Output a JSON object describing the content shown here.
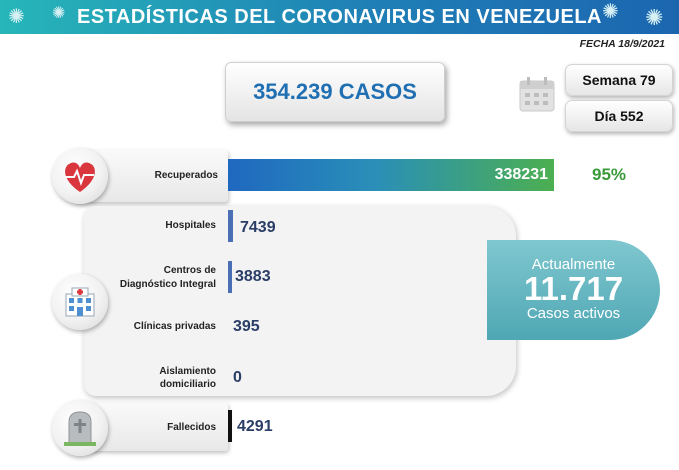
{
  "header": {
    "title": "ESTADÍSTICAS DEL CORONAVIRUS EN VENEZUELA"
  },
  "fecha": "FECHA 18/9/2021",
  "casos": "354.239 CASOS",
  "semana": "Semana 79",
  "dia": "Día 552",
  "recuperados": {
    "label": "Recuperados",
    "value": "338231",
    "pct": "95%"
  },
  "hospitales": {
    "label": "Hospitales",
    "value": "7439"
  },
  "cdi": {
    "label_line1": "Centros de",
    "label_line2": "Diagnóstico Integral",
    "value": "3883"
  },
  "clinicas": {
    "label": "Clínicas privadas",
    "value": "395"
  },
  "aislamiento": {
    "label_line1": "Aislamiento",
    "label_line2": "domiciliario",
    "value": "0"
  },
  "fallecidos": {
    "label": "Fallecidos",
    "value": "4291"
  },
  "activos": {
    "top": "Actualmente",
    "number": "11.717",
    "bottom": "Casos activos"
  },
  "colors": {
    "header": "#1f7fb6",
    "recuperados_bar": "#4caf50",
    "accent_blue": "#1f6fb2",
    "activos": "#5fb3bf"
  },
  "icons": [
    "virus-icon",
    "calendar-icon",
    "heart-pulse-icon",
    "hospital-icon",
    "tombstone-icon"
  ]
}
